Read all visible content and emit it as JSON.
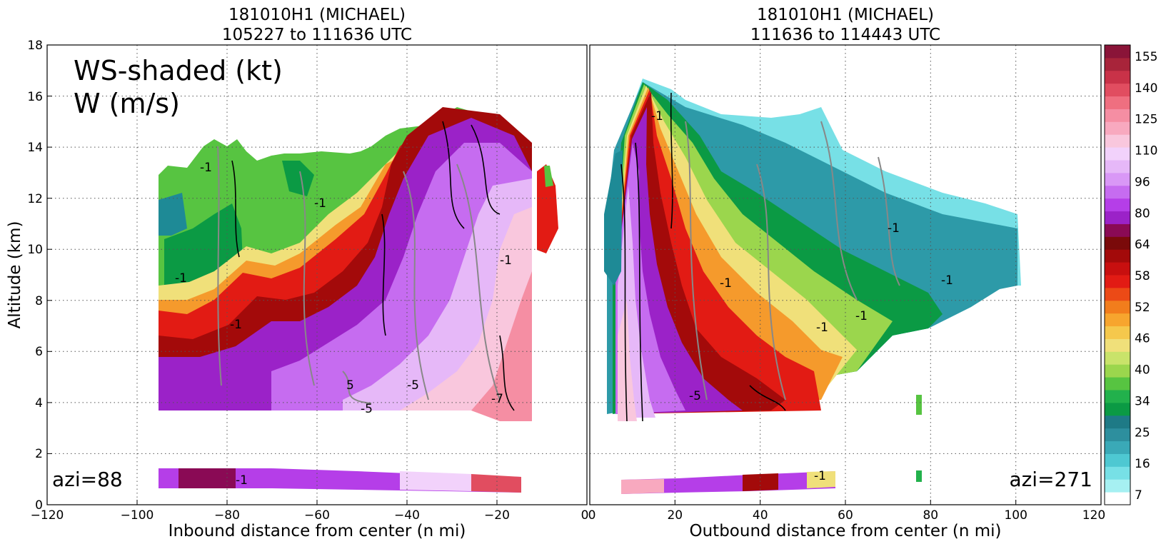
{
  "figure": {
    "annotation_line1": "WS-shaded (kt)",
    "annotation_line2": "W (m/s)"
  },
  "chart_data": [
    {
      "type": "heatmap",
      "title_line1": "181010H1 (MICHAEL)",
      "title_line2": "105227 to 111636 UTC",
      "xlabel": "Inbound distance from center (n mi)",
      "ylabel": "Altitude (km)",
      "xlim": [
        -120,
        0
      ],
      "ylim": [
        0,
        18
      ],
      "xticks": [
        "−120",
        "−100",
        "−80",
        "−60",
        "−40",
        "−20",
        "0"
      ],
      "yticks": [
        "0",
        "2",
        "4",
        "6",
        "8",
        "10",
        "12",
        "14",
        "16",
        "18"
      ],
      "grid": true,
      "azimuth_label": "azi=88",
      "contour_labels": [
        "-1",
        "-1",
        "-1",
        "-1",
        "-1",
        "-5",
        "-5",
        "5",
        "-7",
        "-1"
      ]
    },
    {
      "type": "heatmap",
      "title_line1": "181010H1 (MICHAEL)",
      "title_line2": "111636 to 114443 UTC",
      "xlabel": "Outbound distance from center (n mi)",
      "ylabel": "",
      "xlim": [
        0,
        120
      ],
      "ylim": [
        0,
        18
      ],
      "xticks": [
        "0",
        "20",
        "40",
        "60",
        "80",
        "100",
        "120"
      ],
      "grid": true,
      "azimuth_label": "azi=271",
      "contour_labels": [
        "-1",
        "-1",
        "-1",
        "-1",
        "-1",
        "-1",
        "-5",
        "-1"
      ]
    }
  ],
  "colorbar": {
    "labels": [
      "7",
      "16",
      "25",
      "34",
      "40",
      "46",
      "52",
      "58",
      "64",
      "80",
      "96",
      "110",
      "125",
      "140",
      "155"
    ],
    "colors": [
      "#ffffff",
      "#a6f0f2",
      "#77e0e6",
      "#4ec8d2",
      "#3aa9b7",
      "#2d8f9e",
      "#1e7a86",
      "#0b9a44",
      "#22b14c",
      "#57c441",
      "#9bd64d",
      "#c9e36a",
      "#f0e07a",
      "#f5c84c",
      "#f7a52e",
      "#f27d1c",
      "#ec4a16",
      "#e21b14",
      "#c80f0f",
      "#a30a0a",
      "#7a0a0a",
      "#8a0a55",
      "#9b22c8",
      "#b53ee8",
      "#c66cf0",
      "#d998f6",
      "#e6b8f8",
      "#f2d2fb",
      "#f9c7dd",
      "#f8a9bf",
      "#f58ea3",
      "#ef6f80",
      "#e14d60",
      "#c93248",
      "#a8243a",
      "#8a1438"
    ]
  }
}
